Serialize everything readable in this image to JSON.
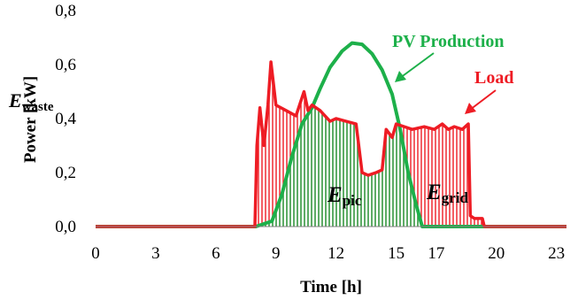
{
  "chart_data": {
    "type": "area",
    "xlabel": "Time [h]",
    "ylabel": "Power [kW]",
    "xlim": [
      0,
      23.5
    ],
    "ylim": [
      0,
      0.8
    ],
    "xticks": [
      0,
      3,
      6,
      9,
      12,
      15,
      17,
      20,
      23
    ],
    "xtick_labels": [
      "0",
      "3",
      "6",
      "9",
      "12",
      "15",
      "17",
      "20",
      "23"
    ],
    "yticks": [
      0,
      0.2,
      0.4,
      0.6,
      0.8
    ],
    "ytick_labels": [
      "0,0",
      "0,2",
      "0,4",
      "0,6",
      "0,8"
    ],
    "grid": false,
    "series": [
      {
        "name": "PV Production",
        "color": "#1db04a",
        "x": [
          0,
          8.0,
          8.8,
          9.3,
          9.8,
          10.3,
          10.8,
          11.2,
          11.7,
          12.3,
          12.8,
          13.3,
          13.8,
          14.3,
          14.8,
          15.2,
          15.6,
          16.0,
          16.3,
          23.5
        ],
        "y": [
          0,
          0,
          0.02,
          0.12,
          0.26,
          0.38,
          0.44,
          0.51,
          0.59,
          0.65,
          0.68,
          0.675,
          0.64,
          0.58,
          0.49,
          0.36,
          0.2,
          0.08,
          0,
          0
        ]
      },
      {
        "name": "Load",
        "color": "#ee1c24",
        "x": [
          0,
          7.95,
          8.05,
          8.2,
          8.4,
          8.6,
          8.75,
          9.0,
          9.5,
          10.0,
          10.4,
          10.6,
          10.8,
          11.2,
          11.7,
          12.0,
          12.5,
          13.0,
          13.3,
          13.6,
          14.0,
          14.3,
          14.5,
          14.8,
          15.0,
          15.4,
          15.8,
          16.4,
          16.9,
          17.3,
          17.6,
          17.9,
          18.3,
          18.6,
          18.7,
          18.9,
          19.3,
          19.4,
          23.5
        ],
        "y": [
          0,
          0,
          0.3,
          0.44,
          0.3,
          0.45,
          0.61,
          0.45,
          0.43,
          0.41,
          0.5,
          0.43,
          0.45,
          0.43,
          0.39,
          0.4,
          0.39,
          0.38,
          0.2,
          0.19,
          0.2,
          0.21,
          0.36,
          0.33,
          0.38,
          0.37,
          0.36,
          0.37,
          0.36,
          0.38,
          0.36,
          0.37,
          0.36,
          0.38,
          0.04,
          0.03,
          0.03,
          0,
          0
        ]
      }
    ],
    "annotations": {
      "pv_label": "PV Production",
      "load_label": "Load",
      "e_waste": {
        "main": "E",
        "sub": "waste"
      },
      "e_pic": {
        "main": "E",
        "sub": "pic"
      },
      "e_grid": {
        "main": "E",
        "sub": "grid"
      }
    }
  }
}
